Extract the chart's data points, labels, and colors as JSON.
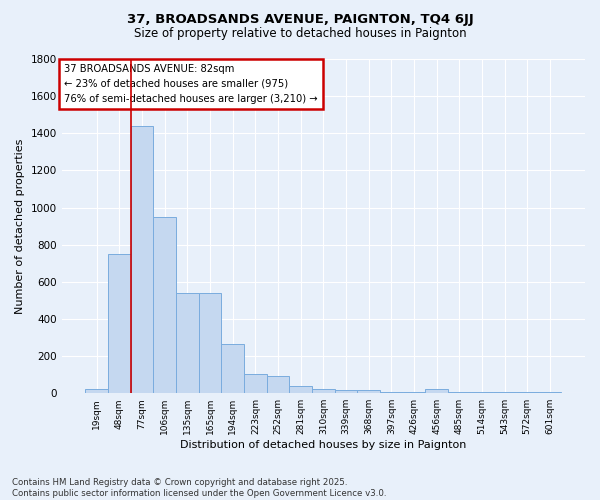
{
  "title": "37, BROADSANDS AVENUE, PAIGNTON, TQ4 6JJ",
  "subtitle": "Size of property relative to detached houses in Paignton",
  "xlabel": "Distribution of detached houses by size in Paignton",
  "ylabel": "Number of detached properties",
  "footer1": "Contains HM Land Registry data © Crown copyright and database right 2025.",
  "footer2": "Contains public sector information licensed under the Open Government Licence v3.0.",
  "annotation_title": "37 BROADSANDS AVENUE: 82sqm",
  "annotation_line1": "← 23% of detached houses are smaller (975)",
  "annotation_line2": "76% of semi-detached houses are larger (3,210) →",
  "categories": [
    "19sqm",
    "48sqm",
    "77sqm",
    "106sqm",
    "135sqm",
    "165sqm",
    "194sqm",
    "223sqm",
    "252sqm",
    "281sqm",
    "310sqm",
    "339sqm",
    "368sqm",
    "397sqm",
    "426sqm",
    "456sqm",
    "485sqm",
    "514sqm",
    "543sqm",
    "572sqm",
    "601sqm"
  ],
  "values": [
    20,
    750,
    1440,
    950,
    540,
    540,
    265,
    105,
    90,
    40,
    25,
    15,
    15,
    5,
    5,
    20,
    5,
    5,
    5,
    5,
    5
  ],
  "bar_color": "#c5d8f0",
  "bar_edge_color": "#7aacde",
  "marker_line_color": "#cc0000",
  "annotation_box_color": "#cc0000",
  "bg_color": "#e8f0fa",
  "plot_bg_color": "#e8f0fa",
  "grid_color": "#ffffff",
  "ylim": [
    0,
    1800
  ],
  "yticks": [
    0,
    200,
    400,
    600,
    800,
    1000,
    1200,
    1400,
    1600,
    1800
  ]
}
